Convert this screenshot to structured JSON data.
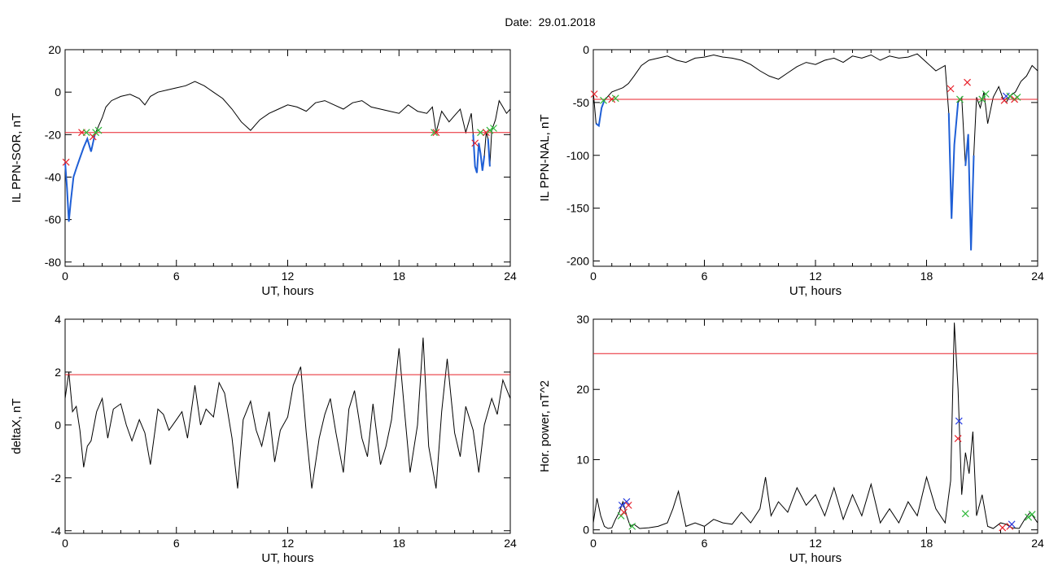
{
  "header": {
    "date_text": "Date:  29.01.2018"
  },
  "chart_data": [
    {
      "type": "line",
      "ylabel": "IL PPN-SOR, nT",
      "xlabel": "UT, hours",
      "xlim": [
        0,
        24
      ],
      "ylim": [
        -82,
        20
      ],
      "xticks": [
        "0",
        "6",
        "12",
        "18",
        "24"
      ],
      "yticks": [
        "20",
        "0",
        "-20",
        "-40",
        "-60",
        "-80"
      ],
      "threshold": -19,
      "series": [
        {
          "values_x": [
            0,
            0.1,
            0.2,
            0.3,
            0.45,
            0.6,
            0.8,
            1.0,
            1.2,
            1.4,
            1.6,
            1.8,
            2.0,
            2.2,
            2.5,
            3.0,
            3.5,
            4.0,
            4.3,
            4.6,
            5.0,
            5.5,
            6.0,
            6.5,
            7.0,
            7.5,
            8.0,
            8.5,
            9.0,
            9.5,
            10.0,
            10.5,
            11.0,
            11.5,
            12.0,
            12.5,
            13.0,
            13.5,
            14.0,
            14.5,
            15.0,
            15.5,
            16.0,
            16.5,
            17.0,
            17.5,
            18.0,
            18.5,
            19.0,
            19.5,
            19.8,
            20.0,
            20.3,
            20.7,
            21.0,
            21.3,
            21.6,
            21.9,
            22.0,
            22.1,
            22.2,
            22.3,
            22.4,
            22.5,
            22.6,
            22.7,
            22.8,
            22.9,
            23.0,
            23.2,
            23.4,
            23.6,
            23.8,
            24.0
          ],
          "values": [
            -33,
            -45,
            -61,
            -52,
            -40,
            -36,
            -31,
            -26,
            -22,
            -28,
            -20,
            -16,
            -12,
            -7,
            -4,
            -2,
            -1,
            -3,
            -6,
            -2,
            0,
            1,
            2,
            3,
            5,
            3,
            0,
            -3,
            -8,
            -14,
            -18,
            -13,
            -10,
            -8,
            -6,
            -7,
            -9,
            -5,
            -4,
            -6,
            -8,
            -5,
            -4,
            -7,
            -8,
            -9,
            -10,
            -6,
            -9,
            -10,
            -7,
            -19,
            -9,
            -14,
            -11,
            -8,
            -19,
            -10,
            -20,
            -35,
            -38,
            -24,
            -29,
            -37,
            -30,
            -19,
            -22,
            -35,
            -18,
            -13,
            -4,
            -7,
            -10,
            -8
          ]
        }
      ],
      "markers": [
        {
          "x": 0.05,
          "y": -33,
          "color": "red"
        },
        {
          "x": 0.9,
          "y": -19,
          "color": "red"
        },
        {
          "x": 1.15,
          "y": -19,
          "color": "green"
        },
        {
          "x": 1.5,
          "y": -21,
          "color": "red"
        },
        {
          "x": 1.65,
          "y": -19,
          "color": "green"
        },
        {
          "x": 1.8,
          "y": -18,
          "color": "green"
        },
        {
          "x": 19.9,
          "y": -19,
          "color": "green"
        },
        {
          "x": 20.0,
          "y": -19,
          "color": "red"
        },
        {
          "x": 22.1,
          "y": -24,
          "color": "red"
        },
        {
          "x": 22.4,
          "y": -19,
          "color": "green"
        },
        {
          "x": 22.7,
          "y": -19,
          "color": "red"
        },
        {
          "x": 22.9,
          "y": -18,
          "color": "green"
        },
        {
          "x": 23.1,
          "y": -17,
          "color": "green"
        }
      ]
    },
    {
      "type": "line",
      "ylabel": "IL PPN-NAL, nT",
      "xlabel": "UT, hours",
      "xlim": [
        0,
        24
      ],
      "ylim": [
        -205,
        0
      ],
      "xticks": [
        "0",
        "6",
        "12",
        "18",
        "24"
      ],
      "yticks": [
        "0",
        "-50",
        "-100",
        "-150",
        "-200"
      ],
      "threshold": -47,
      "series": [
        {
          "values_x": [
            0,
            0.15,
            0.3,
            0.45,
            0.6,
            0.8,
            1.0,
            1.3,
            1.6,
            1.9,
            2.2,
            2.6,
            3.0,
            3.5,
            4.0,
            4.5,
            5.0,
            5.5,
            6.0,
            6.5,
            7.0,
            7.5,
            8.0,
            8.5,
            9.0,
            9.5,
            10.0,
            10.5,
            11.0,
            11.5,
            12.0,
            12.5,
            13.0,
            13.5,
            14.0,
            14.5,
            15.0,
            15.5,
            16.0,
            16.5,
            17.0,
            17.5,
            18.0,
            18.5,
            19.0,
            19.2,
            19.35,
            19.5,
            19.7,
            19.9,
            20.1,
            20.25,
            20.4,
            20.55,
            20.7,
            20.9,
            21.1,
            21.3,
            21.6,
            21.9,
            22.1,
            22.3,
            22.5,
            22.8,
            23.1,
            23.4,
            23.7,
            24.0
          ],
          "values": [
            -40,
            -70,
            -72,
            -55,
            -48,
            -44,
            -40,
            -38,
            -36,
            -32,
            -25,
            -15,
            -10,
            -8,
            -6,
            -10,
            -12,
            -8,
            -7,
            -5,
            -7,
            -8,
            -10,
            -14,
            -20,
            -25,
            -28,
            -22,
            -16,
            -12,
            -14,
            -10,
            -8,
            -12,
            -6,
            -8,
            -5,
            -10,
            -6,
            -8,
            -7,
            -4,
            -12,
            -20,
            -15,
            -60,
            -160,
            -90,
            -50,
            -45,
            -110,
            -80,
            -190,
            -100,
            -45,
            -55,
            -40,
            -70,
            -45,
            -35,
            -45,
            -50,
            -44,
            -40,
            -30,
            -25,
            -15,
            -20
          ]
        }
      ],
      "markers": [
        {
          "x": 0.05,
          "y": -42,
          "color": "red"
        },
        {
          "x": 0.55,
          "y": -48,
          "color": "green"
        },
        {
          "x": 1.0,
          "y": -47,
          "color": "red"
        },
        {
          "x": 1.2,
          "y": -46,
          "color": "green"
        },
        {
          "x": 19.3,
          "y": -37,
          "color": "red"
        },
        {
          "x": 19.8,
          "y": -47,
          "color": "green"
        },
        {
          "x": 20.2,
          "y": -31,
          "color": "red"
        },
        {
          "x": 21.0,
          "y": -47,
          "color": "green"
        },
        {
          "x": 21.2,
          "y": -42,
          "color": "green"
        },
        {
          "x": 22.2,
          "y": -48,
          "color": "red"
        },
        {
          "x": 22.3,
          "y": -44,
          "color": "blue"
        },
        {
          "x": 22.5,
          "y": -44,
          "color": "green"
        },
        {
          "x": 22.75,
          "y": -47,
          "color": "red"
        },
        {
          "x": 22.9,
          "y": -45,
          "color": "green"
        }
      ]
    },
    {
      "type": "line",
      "ylabel": "deltaX, nT",
      "xlabel": "UT, hours",
      "xlim": [
        0,
        24
      ],
      "ylim": [
        -4.1,
        4
      ],
      "xticks": [
        "0",
        "6",
        "12",
        "18",
        "24"
      ],
      "yticks": [
        "4",
        "2",
        "0",
        "-2",
        "-4"
      ],
      "threshold": 1.9,
      "series": [
        {
          "values_x": [
            0,
            0.2,
            0.4,
            0.6,
            0.8,
            1.0,
            1.2,
            1.4,
            1.7,
            2.0,
            2.3,
            2.6,
            3.0,
            3.3,
            3.6,
            4.0,
            4.3,
            4.6,
            5.0,
            5.3,
            5.6,
            6.0,
            6.3,
            6.6,
            7.0,
            7.3,
            7.6,
            8.0,
            8.3,
            8.6,
            9.0,
            9.3,
            9.6,
            10.0,
            10.3,
            10.6,
            11.0,
            11.3,
            11.6,
            12.0,
            12.3,
            12.7,
            13.0,
            13.3,
            13.7,
            14.0,
            14.3,
            14.6,
            15.0,
            15.3,
            15.6,
            16.0,
            16.3,
            16.6,
            17.0,
            17.3,
            17.6,
            18.0,
            18.3,
            18.6,
            19.0,
            19.3,
            19.6,
            20.0,
            20.3,
            20.6,
            21.0,
            21.3,
            21.6,
            22.0,
            22.3,
            22.6,
            23.0,
            23.3,
            23.6,
            24.0
          ],
          "values": [
            1.0,
            2.0,
            0.5,
            0.7,
            -0.2,
            -1.6,
            -0.8,
            -0.6,
            0.5,
            1.0,
            -0.5,
            0.6,
            0.8,
            0.0,
            -0.6,
            0.2,
            -0.3,
            -1.5,
            0.6,
            0.4,
            -0.2,
            0.2,
            0.5,
            -0.5,
            1.5,
            0.0,
            0.6,
            0.3,
            1.6,
            1.2,
            -0.5,
            -2.4,
            0.2,
            0.9,
            -0.2,
            -0.8,
            0.5,
            -1.4,
            -0.2,
            0.3,
            1.5,
            2.2,
            -0.3,
            -2.4,
            -0.5,
            0.4,
            1.0,
            -0.3,
            -1.8,
            0.6,
            1.3,
            -0.5,
            -1.2,
            0.8,
            -1.5,
            -0.8,
            0.2,
            2.9,
            0.5,
            -1.8,
            0.0,
            3.3,
            -0.8,
            -2.4,
            0.5,
            2.5,
            -0.3,
            -1.2,
            0.7,
            -0.2,
            -1.8,
            0.0,
            1.0,
            0.4,
            1.7,
            1.0
          ]
        }
      ],
      "markers": []
    },
    {
      "type": "line",
      "ylabel": "Hor. power, nT^2",
      "xlabel": "UT, hours",
      "xlim": [
        0,
        24
      ],
      "ylim": [
        -0.5,
        30
      ],
      "xticks": [
        "0",
        "6",
        "12",
        "18",
        "24"
      ],
      "yticks": [
        "30",
        "20",
        "10",
        "0"
      ],
      "threshold": 25.1,
      "series": [
        {
          "values_x": [
            0,
            0.2,
            0.4,
            0.6,
            0.8,
            1.0,
            1.2,
            1.4,
            1.6,
            1.8,
            2.0,
            2.2,
            2.5,
            3.0,
            3.5,
            4.0,
            4.3,
            4.6,
            5.0,
            5.5,
            6.0,
            6.5,
            7.0,
            7.5,
            8.0,
            8.5,
            9.0,
            9.3,
            9.6,
            10.0,
            10.5,
            11.0,
            11.5,
            12.0,
            12.5,
            13.0,
            13.5,
            14.0,
            14.5,
            15.0,
            15.5,
            16.0,
            16.5,
            17.0,
            17.5,
            18.0,
            18.5,
            19.0,
            19.3,
            19.5,
            19.7,
            19.9,
            20.1,
            20.3,
            20.5,
            20.7,
            21.0,
            21.3,
            21.6,
            22.0,
            22.3,
            22.6,
            23.0,
            23.3,
            23.6,
            24.0
          ],
          "values": [
            1.0,
            4.5,
            2.0,
            0.5,
            0.2,
            0.3,
            1.5,
            2.5,
            4.0,
            2.0,
            0.5,
            0.8,
            0.2,
            0.3,
            0.5,
            1.0,
            3.0,
            5.5,
            0.5,
            1.0,
            0.5,
            1.5,
            1.0,
            0.8,
            2.5,
            1.0,
            3.0,
            7.5,
            2.0,
            4.0,
            2.5,
            6.0,
            3.5,
            5.0,
            2.0,
            6.0,
            1.5,
            5.0,
            2.0,
            6.5,
            1.0,
            3.0,
            1.0,
            4.0,
            2.0,
            7.5,
            3.0,
            1.0,
            7.0,
            29.5,
            20.0,
            5.0,
            11.0,
            8.0,
            14.0,
            2.0,
            5.0,
            0.5,
            0.2,
            1.0,
            0.8,
            0.3,
            0.2,
            1.5,
            2.5,
            1.0
          ]
        }
      ],
      "markers": [
        {
          "x": 1.5,
          "y": 2.0,
          "color": "green"
        },
        {
          "x": 1.55,
          "y": 3.5,
          "color": "blue"
        },
        {
          "x": 1.65,
          "y": 2.5,
          "color": "red"
        },
        {
          "x": 1.8,
          "y": 4.0,
          "color": "blue"
        },
        {
          "x": 1.9,
          "y": 3.5,
          "color": "red"
        },
        {
          "x": 2.1,
          "y": 0.5,
          "color": "green"
        },
        {
          "x": 19.7,
          "y": 13.0,
          "color": "red"
        },
        {
          "x": 19.75,
          "y": 15.5,
          "color": "blue"
        },
        {
          "x": 20.1,
          "y": 2.3,
          "color": "green"
        },
        {
          "x": 22.1,
          "y": 0.3,
          "color": "red"
        },
        {
          "x": 22.5,
          "y": 0.5,
          "color": "red"
        },
        {
          "x": 22.6,
          "y": 0.8,
          "color": "blue"
        },
        {
          "x": 23.5,
          "y": 1.8,
          "color": "green"
        },
        {
          "x": 23.7,
          "y": 2.2,
          "color": "green"
        }
      ]
    }
  ]
}
